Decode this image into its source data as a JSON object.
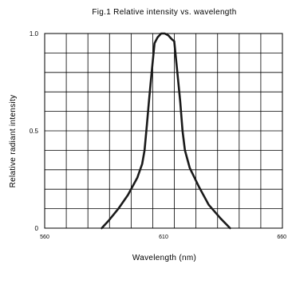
{
  "chart_data": {
    "type": "line",
    "title": "Fig.1 Relative intensity vs. wavelength",
    "xlabel": "Wavelength (nm)",
    "ylabel": "Relative radiant intensity",
    "xlim": [
      560,
      660
    ],
    "ylim": [
      0,
      1.0
    ],
    "x_ticks": [
      560,
      610,
      660
    ],
    "x_tick_labels": [
      "560",
      "610",
      "660"
    ],
    "y_ticks": [
      0,
      0.5,
      1.0
    ],
    "y_tick_labels": [
      "0",
      "0.5",
      "1.0"
    ],
    "grid": true,
    "grid_x_divisions": 11,
    "grid_y_divisions": 10,
    "legend": "none",
    "line_color": "#1a1a1a",
    "series": [
      {
        "x": [
          584,
          587,
          591,
          595,
          599,
          601,
          602,
          603,
          604,
          605,
          606.2,
          607.5,
          609,
          610.5,
          612,
          613.5,
          614.5,
          615.8,
          617,
          618,
          619,
          621,
          625,
          629,
          634,
          638
        ],
        "y": [
          0.0,
          0.04,
          0.1,
          0.17,
          0.26,
          0.33,
          0.4,
          0.53,
          0.67,
          0.8,
          0.95,
          0.98,
          1.0,
          1.0,
          0.99,
          0.97,
          0.96,
          0.8,
          0.65,
          0.5,
          0.4,
          0.31,
          0.21,
          0.12,
          0.05,
          0.0
        ]
      }
    ]
  }
}
